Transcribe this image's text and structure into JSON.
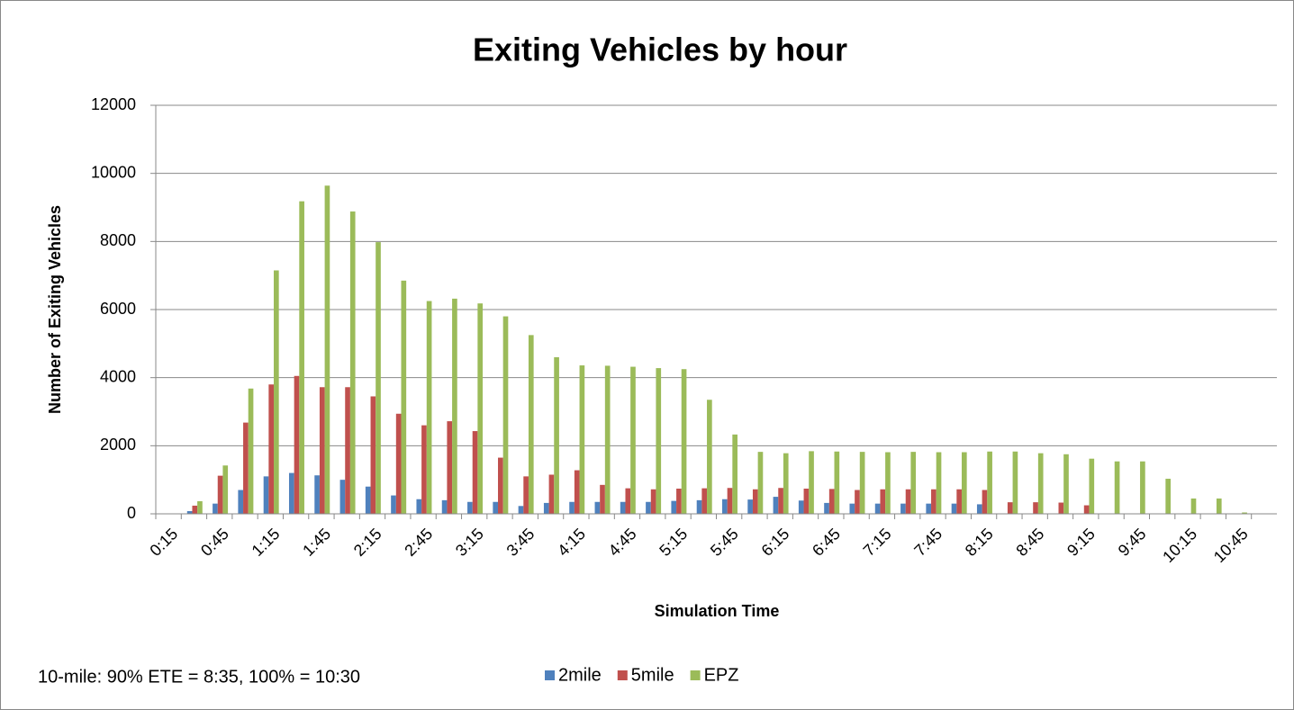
{
  "chart_data": {
    "type": "bar",
    "title": "Exiting Vehicles by hour",
    "x_label": "Simulation Time",
    "y_label": "Number of Exiting Vehicles",
    "annotation": "10-mile: 90% ETE = 8:35, 100% = 10:30",
    "categories": [
      "0:15",
      null,
      "0:45",
      null,
      "1:15",
      null,
      "1:45",
      null,
      "2:15",
      null,
      "2:45",
      null,
      "3:15",
      null,
      "3:45",
      null,
      "4:15",
      null,
      "4:45",
      null,
      "5:15",
      null,
      "5:45",
      null,
      "6:15",
      null,
      "6:45",
      null,
      "7:15",
      null,
      "7:45",
      null,
      "8:15",
      null,
      "8:45",
      null,
      "9:15",
      null,
      "9:45",
      null,
      "10:15",
      null,
      "10:45",
      null
    ],
    "series": [
      {
        "name": "2mile",
        "color": "#4f81bd",
        "values": [
          0,
          80,
          300,
          700,
          1100,
          1200,
          1130,
          1000,
          800,
          540,
          430,
          400,
          350,
          350,
          230,
          320,
          350,
          350,
          350,
          350,
          380,
          400,
          430,
          420,
          500,
          390,
          320,
          300,
          300,
          300,
          300,
          300,
          280,
          0,
          0,
          0,
          0,
          0,
          0,
          0,
          0,
          0,
          0,
          0
        ]
      },
      {
        "name": "5mile",
        "color": "#c0504d",
        "values": [
          0,
          240,
          1120,
          2680,
          3800,
          4050,
          3720,
          3720,
          3450,
          2940,
          2600,
          2720,
          2430,
          1650,
          1100,
          1150,
          1280,
          850,
          750,
          720,
          740,
          750,
          760,
          720,
          760,
          740,
          730,
          700,
          720,
          720,
          720,
          720,
          700,
          340,
          340,
          330,
          250,
          0,
          0,
          0,
          0,
          0,
          0,
          0
        ]
      },
      {
        "name": "EPZ",
        "color": "#9bbb59",
        "values": [
          0,
          370,
          1420,
          3680,
          7150,
          9180,
          9640,
          8880,
          7980,
          6850,
          6250,
          6320,
          6180,
          5800,
          5250,
          4600,
          4360,
          4350,
          4320,
          4280,
          4250,
          3350,
          2330,
          1820,
          1780,
          1840,
          1830,
          1820,
          1810,
          1820,
          1810,
          1810,
          1830,
          1830,
          1780,
          1750,
          1620,
          1540,
          1540,
          1030,
          450,
          450,
          40,
          0
        ]
      }
    ],
    "ylim": [
      0,
      12000
    ],
    "yticks": [
      0,
      2000,
      4000,
      6000,
      8000,
      10000,
      12000
    ],
    "grid": true,
    "legend": "bottom"
  }
}
